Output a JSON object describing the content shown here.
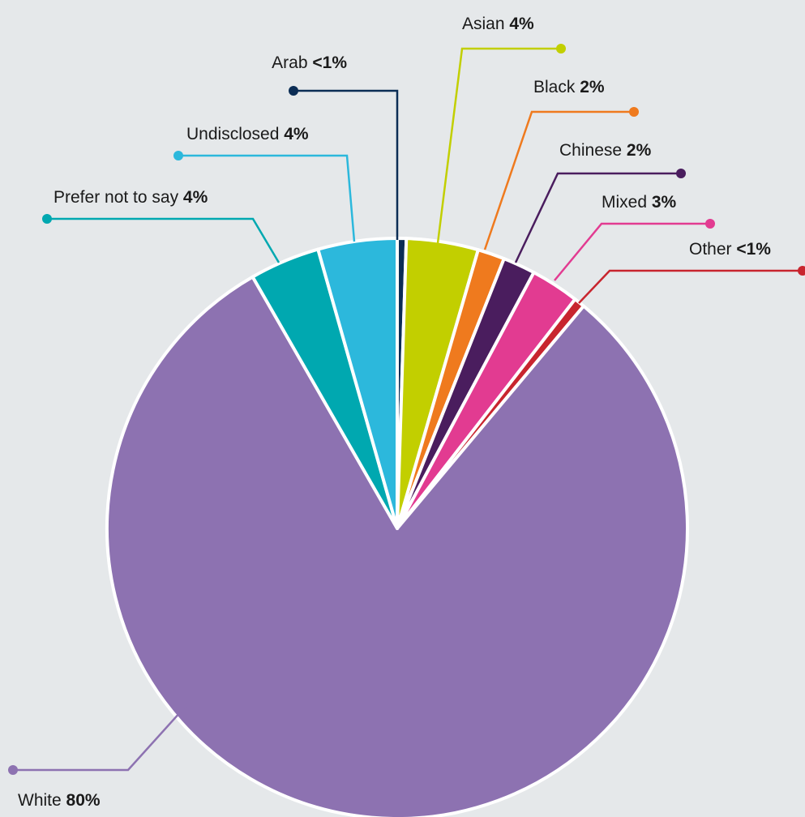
{
  "chart_data": {
    "type": "pie",
    "title": "",
    "slices": [
      {
        "name": "Arab",
        "value_label": "<1%",
        "value": 0.5,
        "color": "#0b2d55"
      },
      {
        "name": "Asian",
        "value_label": "4%",
        "value": 4,
        "color": "#c2cf00"
      },
      {
        "name": "Black",
        "value_label": "2%",
        "value": 1.5,
        "color": "#ef7a1e"
      },
      {
        "name": "Chinese",
        "value_label": "2%",
        "value": 1.8,
        "color": "#4a1d5e"
      },
      {
        "name": "Mixed",
        "value_label": "3%",
        "value": 2.7,
        "color": "#e23b91"
      },
      {
        "name": "Other",
        "value_label": "<1%",
        "value": 0.6,
        "color": "#c8252e"
      },
      {
        "name": "White",
        "value_label": "80%",
        "value": 80.6,
        "color": "#8d72b1"
      },
      {
        "name": "Prefer not to say",
        "value_label": "4%",
        "value": 3.9,
        "color": "#00a8b0"
      },
      {
        "name": "Undisclosed",
        "value_label": "4%",
        "value": 4.4,
        "color": "#2cb8dc"
      }
    ],
    "start_angle_deg": 0,
    "direction": "clockwise",
    "legend": "none (direct labels with leader lines)"
  }
}
